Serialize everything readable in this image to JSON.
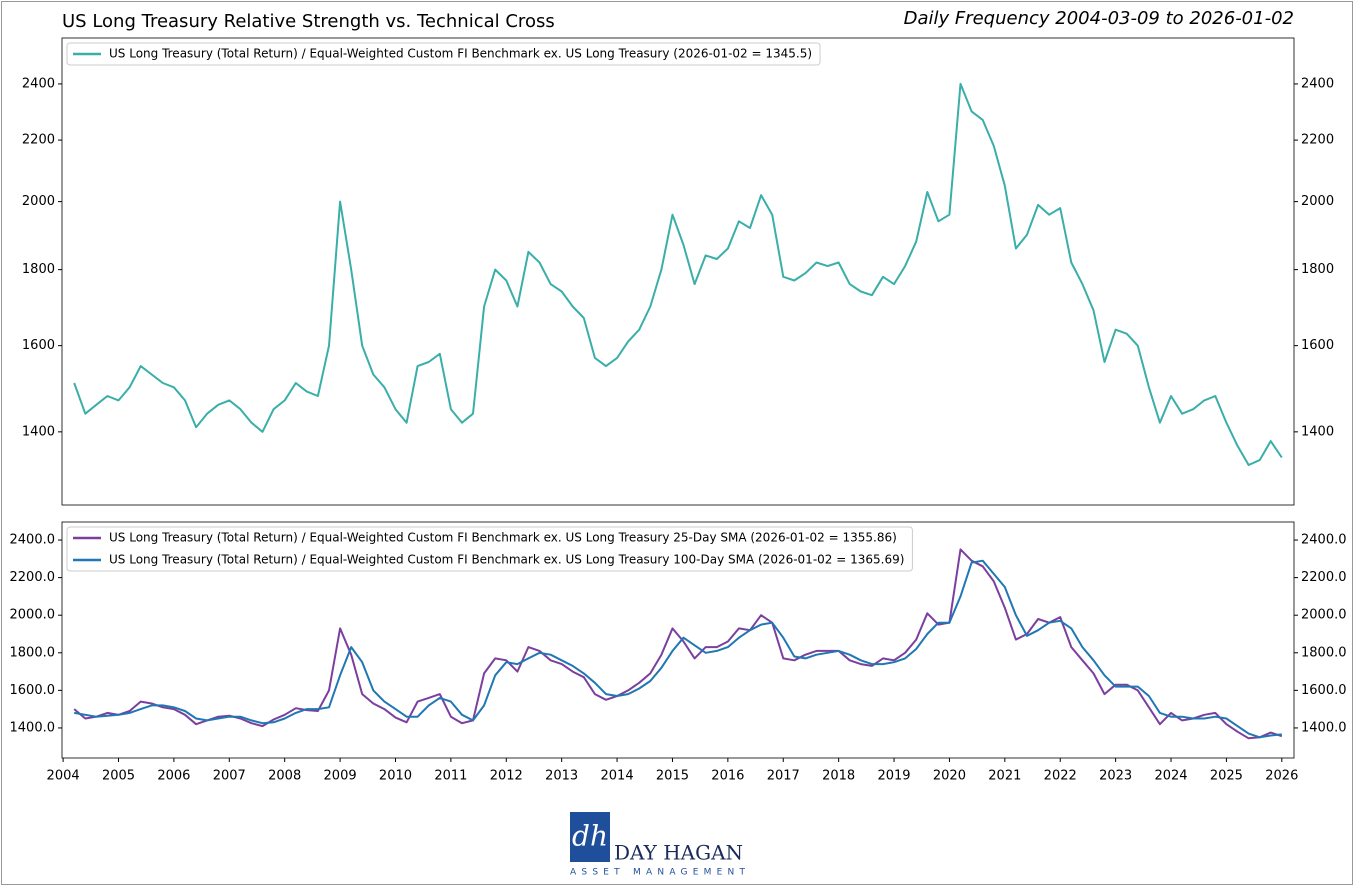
{
  "title": "US Long Treasury Relative Strength vs. Technical Cross",
  "subtitle": "Daily Frequency 2004-03-09 to 2026-01-02",
  "logo": {
    "mark": "dh",
    "name": "DAY HAGAN",
    "tagline": "ASSET MANAGEMENT"
  },
  "chart_data": [
    {
      "type": "line",
      "yscale": "log",
      "legend": "upper left",
      "xlim": [
        2003.98,
        2026.22
      ],
      "ylim": [
        1250,
        2577
      ],
      "yticks": [
        1400,
        1600,
        1800,
        2000,
        2200,
        2400
      ],
      "x": [
        2004.2,
        2004.4,
        2004.6,
        2004.8,
        2005.0,
        2005.2,
        2005.4,
        2005.6,
        2005.8,
        2006.0,
        2006.2,
        2006.4,
        2006.6,
        2006.8,
        2007.0,
        2007.2,
        2007.4,
        2007.6,
        2007.8,
        2008.0,
        2008.2,
        2008.4,
        2008.6,
        2008.8,
        2009.0,
        2009.2,
        2009.4,
        2009.6,
        2009.8,
        2010.0,
        2010.2,
        2010.4,
        2010.6,
        2010.8,
        2011.0,
        2011.2,
        2011.4,
        2011.6,
        2011.8,
        2012.0,
        2012.2,
        2012.4,
        2012.6,
        2012.8,
        2013.0,
        2013.2,
        2013.4,
        2013.6,
        2013.8,
        2014.0,
        2014.2,
        2014.4,
        2014.6,
        2014.8,
        2015.0,
        2015.2,
        2015.4,
        2015.6,
        2015.8,
        2016.0,
        2016.2,
        2016.4,
        2016.6,
        2016.8,
        2017.0,
        2017.2,
        2017.4,
        2017.6,
        2017.8,
        2018.0,
        2018.2,
        2018.4,
        2018.6,
        2018.8,
        2019.0,
        2019.2,
        2019.4,
        2019.6,
        2019.8,
        2020.0,
        2020.2,
        2020.4,
        2020.6,
        2020.8,
        2021.0,
        2021.2,
        2021.4,
        2021.6,
        2021.8,
        2022.0,
        2022.2,
        2022.4,
        2022.6,
        2022.8,
        2023.0,
        2023.2,
        2023.4,
        2023.6,
        2023.8,
        2024.0,
        2024.2,
        2024.4,
        2024.6,
        2024.8,
        2025.0,
        2025.2,
        2025.4,
        2025.6,
        2025.8,
        2026.0
      ],
      "series": [
        {
          "name": "US Long Treasury (Total Return) / Equal-Weighted Custom FI Benchmark ex. US Long Treasury (2026-01-02 = 1345.5)",
          "color": "#3aaea8",
          "values": [
            1510,
            1440,
            1460,
            1480,
            1470,
            1500,
            1550,
            1530,
            1510,
            1500,
            1470,
            1410,
            1440,
            1460,
            1470,
            1450,
            1420,
            1400,
            1450,
            1470,
            1510,
            1490,
            1480,
            1600,
            2000,
            1800,
            1600,
            1530,
            1500,
            1450,
            1420,
            1550,
            1560,
            1580,
            1450,
            1420,
            1440,
            1700,
            1800,
            1770,
            1700,
            1850,
            1820,
            1760,
            1740,
            1700,
            1670,
            1570,
            1550,
            1570,
            1610,
            1640,
            1700,
            1800,
            1960,
            1870,
            1760,
            1840,
            1830,
            1860,
            1940,
            1920,
            2020,
            1960,
            1780,
            1770,
            1790,
            1820,
            1810,
            1820,
            1760,
            1740,
            1730,
            1780,
            1760,
            1810,
            1880,
            2030,
            1940,
            1960,
            2400,
            2300,
            2270,
            2180,
            2050,
            1860,
            1900,
            1990,
            1960,
            1980,
            1820,
            1760,
            1690,
            1560,
            1640,
            1630,
            1600,
            1500,
            1420,
            1480,
            1440,
            1450,
            1470,
            1480,
            1420,
            1370,
            1330,
            1340,
            1380,
            1345.5
          ]
        }
      ]
    },
    {
      "type": "line",
      "yscale": "linear",
      "legend": "upper left",
      "xlim": [
        2003.98,
        2026.22
      ],
      "ylim": [
        1240,
        2496
      ],
      "xticks": [
        2004,
        2005,
        2006,
        2007,
        2008,
        2009,
        2010,
        2011,
        2012,
        2013,
        2014,
        2015,
        2016,
        2017,
        2018,
        2019,
        2020,
        2021,
        2022,
        2023,
        2024,
        2025,
        2026
      ],
      "yticks": [
        {
          "value": 1400,
          "label": "1400.0"
        },
        {
          "value": 1600,
          "label": "1600.0"
        },
        {
          "value": 1800,
          "label": "1800.0"
        },
        {
          "value": 2000,
          "label": "2000.0"
        },
        {
          "value": 2200,
          "label": "2200.0"
        },
        {
          "value": 2400,
          "label": "2400.0"
        }
      ],
      "x": [
        2004.2,
        2004.4,
        2004.6,
        2004.8,
        2005.0,
        2005.2,
        2005.4,
        2005.6,
        2005.8,
        2006.0,
        2006.2,
        2006.4,
        2006.6,
        2006.8,
        2007.0,
        2007.2,
        2007.4,
        2007.6,
        2007.8,
        2008.0,
        2008.2,
        2008.4,
        2008.6,
        2008.8,
        2009.0,
        2009.2,
        2009.4,
        2009.6,
        2009.8,
        2010.0,
        2010.2,
        2010.4,
        2010.6,
        2010.8,
        2011.0,
        2011.2,
        2011.4,
        2011.6,
        2011.8,
        2012.0,
        2012.2,
        2012.4,
        2012.6,
        2012.8,
        2013.0,
        2013.2,
        2013.4,
        2013.6,
        2013.8,
        2014.0,
        2014.2,
        2014.4,
        2014.6,
        2014.8,
        2015.0,
        2015.2,
        2015.4,
        2015.6,
        2015.8,
        2016.0,
        2016.2,
        2016.4,
        2016.6,
        2016.8,
        2017.0,
        2017.2,
        2017.4,
        2017.6,
        2017.8,
        2018.0,
        2018.2,
        2018.4,
        2018.6,
        2018.8,
        2019.0,
        2019.2,
        2019.4,
        2019.6,
        2019.8,
        2020.0,
        2020.2,
        2020.4,
        2020.6,
        2020.8,
        2021.0,
        2021.2,
        2021.4,
        2021.6,
        2021.8,
        2022.0,
        2022.2,
        2022.4,
        2022.6,
        2022.8,
        2023.0,
        2023.2,
        2023.4,
        2023.6,
        2023.8,
        2024.0,
        2024.2,
        2024.4,
        2024.6,
        2024.8,
        2025.0,
        2025.2,
        2025.4,
        2025.6,
        2025.8,
        2026.0
      ],
      "series": [
        {
          "name": "US Long Treasury (Total Return) / Equal-Weighted Custom FI Benchmark ex. US Long Treasury 25-Day SMA (2026-01-02 = 1355.86)",
          "color": "#7b3f9e",
          "values": [
            1500,
            1450,
            1460,
            1480,
            1470,
            1490,
            1540,
            1530,
            1510,
            1500,
            1470,
            1420,
            1440,
            1460,
            1465,
            1450,
            1425,
            1410,
            1445,
            1470,
            1505,
            1495,
            1490,
            1600,
            1930,
            1790,
            1580,
            1530,
            1500,
            1455,
            1430,
            1540,
            1560,
            1580,
            1460,
            1425,
            1440,
            1690,
            1770,
            1760,
            1700,
            1830,
            1810,
            1760,
            1740,
            1700,
            1670,
            1580,
            1550,
            1570,
            1600,
            1640,
            1690,
            1790,
            1930,
            1860,
            1770,
            1830,
            1830,
            1860,
            1930,
            1920,
            2000,
            1960,
            1770,
            1760,
            1790,
            1810,
            1810,
            1810,
            1760,
            1740,
            1730,
            1770,
            1760,
            1800,
            1870,
            2010,
            1950,
            1960,
            2350,
            2290,
            2260,
            2180,
            2040,
            1870,
            1900,
            1980,
            1960,
            1990,
            1830,
            1760,
            1690,
            1580,
            1630,
            1630,
            1600,
            1510,
            1420,
            1480,
            1440,
            1450,
            1470,
            1480,
            1420,
            1380,
            1345,
            1350,
            1375,
            1355.86
          ]
        },
        {
          "name": "US Long Treasury (Total Return) / Equal-Weighted Custom FI Benchmark ex. US Long Treasury 100-Day SMA (2026-01-02 = 1365.69)",
          "color": "#1f77b4",
          "values": [
            1480,
            1470,
            1460,
            1465,
            1470,
            1480,
            1500,
            1520,
            1520,
            1510,
            1490,
            1450,
            1440,
            1450,
            1460,
            1460,
            1440,
            1425,
            1430,
            1450,
            1480,
            1500,
            1500,
            1510,
            1680,
            1830,
            1750,
            1600,
            1540,
            1500,
            1460,
            1460,
            1520,
            1560,
            1540,
            1470,
            1440,
            1520,
            1680,
            1750,
            1740,
            1770,
            1800,
            1790,
            1760,
            1730,
            1690,
            1640,
            1580,
            1570,
            1580,
            1610,
            1650,
            1720,
            1810,
            1880,
            1840,
            1800,
            1810,
            1830,
            1880,
            1920,
            1950,
            1960,
            1880,
            1780,
            1770,
            1790,
            1800,
            1810,
            1790,
            1760,
            1740,
            1740,
            1750,
            1770,
            1820,
            1900,
            1960,
            1960,
            2100,
            2280,
            2290,
            2220,
            2150,
            2000,
            1890,
            1920,
            1960,
            1970,
            1930,
            1830,
            1760,
            1680,
            1620,
            1620,
            1620,
            1570,
            1480,
            1460,
            1460,
            1450,
            1450,
            1460,
            1450,
            1410,
            1370,
            1350,
            1360,
            1365.69
          ]
        }
      ]
    }
  ]
}
